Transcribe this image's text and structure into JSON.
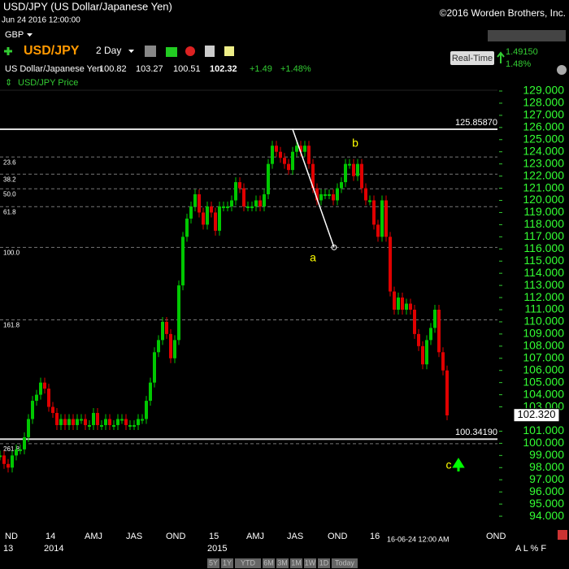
{
  "header": {
    "title": "USD/JPY (US Dollar/Japanese Yen)",
    "timestamp": "Jun 24 2016 12:00:00",
    "copyright": "©2016 Worden Brothers, Inc.",
    "currency": "GBP",
    "symbol": "USD/JPY",
    "period": "2 Day",
    "name": "US Dollar/Japanese Yen",
    "quote": [
      100.82,
      103.27,
      100.51,
      102.32,
      "+1.49",
      "+1.48%"
    ],
    "realtime": "Real-Time",
    "rt_value": 1.4915,
    "rt_value_label": "1.49150",
    "rt_change": "1.48%",
    "legend": "USD/JPY Price"
  },
  "footer": {
    "buttons": [
      "5Y",
      "1Y",
      "YTD",
      "6M",
      "3M",
      "1M",
      "1W",
      "1D",
      "Today"
    ],
    "options": "A L % F",
    "cursor_date": "16-06-24 12:00 AM"
  },
  "chart_data": {
    "type": "candle-close",
    "colors": {
      "up": "#00c800",
      "down": "#e00000"
    },
    "x": [
      0,
      1,
      2,
      3,
      4,
      5,
      6,
      7,
      8,
      9,
      10,
      11,
      12,
      13,
      14,
      15,
      16,
      17,
      18,
      19,
      20,
      21,
      22,
      23,
      24,
      25,
      26,
      27,
      28,
      29,
      30,
      31,
      32,
      33,
      34,
      35,
      36,
      37,
      38,
      39,
      40,
      41,
      42,
      43,
      44,
      45,
      46,
      47,
      48,
      49,
      50,
      51,
      52,
      53,
      54,
      55,
      56,
      57,
      58,
      59,
      60,
      61,
      62,
      63,
      64,
      65,
      66,
      67,
      68,
      69,
      70,
      71,
      72,
      73,
      74,
      75,
      76,
      77,
      78,
      79,
      80,
      81,
      82,
      83,
      84,
      85,
      86,
      87,
      88,
      89,
      90,
      91,
      92,
      93,
      94,
      95,
      96,
      97,
      98,
      99,
      100,
      101,
      102,
      103,
      104,
      105,
      106,
      107,
      108,
      109,
      110
    ],
    "series": [
      {
        "name": "USD/JPY Price",
        "values": [
          99,
          98.3,
          98,
          99,
          99.5,
          99.5,
          100.5,
          102,
          103.5,
          104,
          105,
          104.5,
          103,
          102.5,
          101.5,
          102,
          101.5,
          102,
          101.5,
          102,
          102,
          101.5,
          101.5,
          102.5,
          101.5,
          101.5,
          102,
          101.5,
          101.5,
          102,
          102,
          101.5,
          101.5,
          101.5,
          102,
          102,
          103.5,
          105,
          107.5,
          108.5,
          110,
          109,
          107,
          108.5,
          113,
          117,
          118.5,
          119.5,
          120.5,
          119,
          118,
          119.5,
          119,
          117.5,
          119.5,
          119.5,
          119.5,
          120,
          121.5,
          121,
          119.5,
          119.5,
          119.5,
          120,
          119.5,
          120.5,
          123,
          124.5,
          124,
          123.5,
          123,
          122.5,
          124,
          124.5,
          124,
          124.5,
          123,
          121,
          120,
          120.5,
          120.5,
          120.5,
          120,
          121,
          121.5,
          123,
          123,
          122,
          123,
          121,
          120,
          120,
          118,
          117,
          120,
          117,
          112.5,
          111,
          112,
          111,
          111.5,
          111,
          109,
          108,
          106.5,
          108.5,
          109.5,
          111,
          107.5,
          106,
          102.3
        ]
      }
    ],
    "xlim": [
      0,
      122.4
    ],
    "ylim": [
      93,
      129.134
    ],
    "xticks": [
      {
        "value": 1.2,
        "label": "ND"
      },
      {
        "value": 11.2,
        "label": "14"
      },
      {
        "value": 20.8,
        "label": "AMJ"
      },
      {
        "value": 31,
        "label": "JAS"
      },
      {
        "value": 40.8,
        "label": "OND"
      },
      {
        "value": 51.4,
        "label": "15"
      },
      {
        "value": 60.6,
        "label": "AMJ"
      },
      {
        "value": 70.6,
        "label": "JAS"
      },
      {
        "value": 80.6,
        "label": "OND"
      },
      {
        "value": 91,
        "label": "16"
      },
      {
        "value": 119.6,
        "label": "OND"
      }
    ],
    "year_labels": [
      {
        "value": 1.2,
        "label": "13"
      },
      {
        "value": 11.2,
        "label": "2014"
      },
      {
        "value": 51.4,
        "label": "2015"
      }
    ],
    "yticks": [
      {
        "value": 129,
        "label": "129.000"
      },
      {
        "value": 128,
        "label": "128.000"
      },
      {
        "value": 127,
        "label": "127.000"
      },
      {
        "value": 126,
        "label": "126.000"
      },
      {
        "value": 125,
        "label": "125.000"
      },
      {
        "value": 124,
        "label": "124.000"
      },
      {
        "value": 123,
        "label": "123.000"
      },
      {
        "value": 122,
        "label": "122.000"
      },
      {
        "value": 121,
        "label": "121.000"
      },
      {
        "value": 120,
        "label": "120.000"
      },
      {
        "value": 119,
        "label": "119.000"
      },
      {
        "value": 118,
        "label": "118.000"
      },
      {
        "value": 117,
        "label": "117.000"
      },
      {
        "value": 116,
        "label": "116.000"
      },
      {
        "value": 115,
        "label": "115.000"
      },
      {
        "value": 114,
        "label": "114.000"
      },
      {
        "value": 113,
        "label": "113.000"
      },
      {
        "value": 112,
        "label": "112.000"
      },
      {
        "value": 111,
        "label": "111.000"
      },
      {
        "value": 110,
        "label": "110.000"
      },
      {
        "value": 109,
        "label": "109.000"
      },
      {
        "value": 108,
        "label": "108.000"
      },
      {
        "value": 107,
        "label": "107.000"
      },
      {
        "value": 106,
        "label": "106.000"
      },
      {
        "value": 105,
        "label": "105.000"
      },
      {
        "value": 104,
        "label": "104.000"
      },
      {
        "value": 103,
        "label": "103.000"
      },
      {
        "value": 101,
        "label": "101.000"
      },
      {
        "value": 100,
        "label": "100.000"
      },
      {
        "value": 99,
        "label": "99.000"
      },
      {
        "value": 98,
        "label": "98.000"
      },
      {
        "value": 97,
        "label": "97.000"
      },
      {
        "value": 96,
        "label": "96.000"
      },
      {
        "value": 95,
        "label": "95.000"
      },
      {
        "value": 94,
        "label": "94.000"
      }
    ],
    "current_price": {
      "value": 102.32,
      "label": "102.320"
    },
    "levels": [
      {
        "value": 125.8587,
        "label": "125.85870"
      },
      {
        "value": 100.3419,
        "label": "100.34190"
      }
    ],
    "fib_levels": [
      {
        "value": 123.57,
        "label": "23.6"
      },
      {
        "value": 122.16,
        "label": "38.2"
      },
      {
        "value": 120.95,
        "label": "50.0"
      },
      {
        "value": 119.48,
        "label": "61.8"
      },
      {
        "value": 116.13,
        "label": "100.0"
      },
      {
        "value": 110.16,
        "label": "161.8"
      },
      {
        "value": 99.97,
        "label": "261.8"
      }
    ],
    "trendline": {
      "x": [
        72,
        82.2
      ],
      "y": [
        125.8587,
        116.13
      ]
    },
    "annotations": [
      "a",
      "b",
      "c"
    ]
  }
}
